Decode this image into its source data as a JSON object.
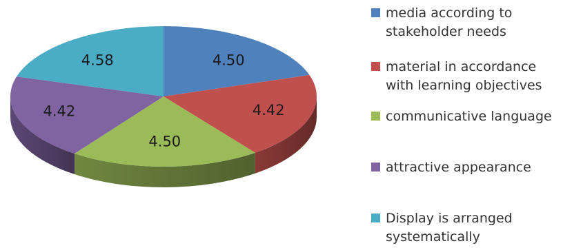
{
  "chart_data": {
    "type": "pie",
    "three_d": true,
    "title": "",
    "legend_position": "right",
    "slices": [
      {
        "label": "media according to stakeholder needs",
        "value": 4.5,
        "value_text": "4.50",
        "color": "#4F81BD"
      },
      {
        "label": "material in accordance with learning objectives",
        "value": 4.42,
        "value_text": "4.42",
        "color": "#C0504D"
      },
      {
        "label": "communicative language",
        "value": 4.5,
        "value_text": "4.50",
        "color": "#9BBB59"
      },
      {
        "label": "attractive appearance",
        "value": 4.42,
        "value_text": "4.42",
        "color": "#8064A2"
      },
      {
        "label": "Display is arranged systematically",
        "value": 4.58,
        "value_text": "4.58",
        "color": "#4BACC6"
      }
    ]
  }
}
